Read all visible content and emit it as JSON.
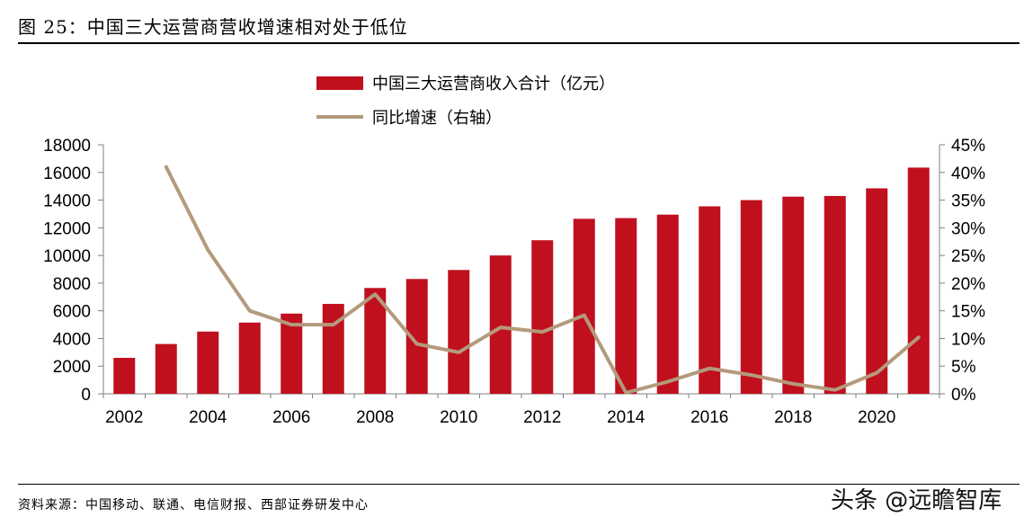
{
  "figure": {
    "title": "图 25：中国三大运营商营收增速相对处于低位",
    "source": "资料来源：中国移动、联通、电信财报、西部证券研发中心",
    "watermark": "头条 @远瞻智库"
  },
  "chart_data": {
    "type": "bar+line",
    "title": "",
    "categories": [
      2002,
      2003,
      2004,
      2005,
      2006,
      2007,
      2008,
      2009,
      2010,
      2011,
      2012,
      2013,
      2014,
      2015,
      2016,
      2017,
      2018,
      2019,
      2020,
      2021
    ],
    "x_tick_labels": [
      "2002",
      "2004",
      "2006",
      "2008",
      "2010",
      "2012",
      "2014",
      "2016",
      "2018",
      "2020"
    ],
    "series": [
      {
        "name": "中国三大运营商收入合计（亿元）",
        "type": "bar",
        "axis": "left",
        "color": "#c0101e",
        "values": [
          2600,
          3600,
          4500,
          5150,
          5800,
          6500,
          7650,
          8300,
          8950,
          10000,
          11100,
          12650,
          12700,
          12950,
          13550,
          14000,
          14250,
          14300,
          14850,
          16350
        ]
      },
      {
        "name": "同比增速（右轴）",
        "type": "line",
        "axis": "right",
        "color": "#b49a7c",
        "values": [
          null,
          0.41,
          0.26,
          0.15,
          0.125,
          0.125,
          0.18,
          0.09,
          0.075,
          0.12,
          0.112,
          0.142,
          0.002,
          0.022,
          0.046,
          0.034,
          0.018,
          0.007,
          0.038,
          0.102
        ]
      }
    ],
    "y_left": {
      "min": 0,
      "max": 18000,
      "ticks": [
        "0",
        "2000",
        "4000",
        "6000",
        "8000",
        "10000",
        "12000",
        "14000",
        "16000",
        "18000"
      ]
    },
    "y_right": {
      "min": 0,
      "max": 0.45,
      "ticks": [
        "0%",
        "5%",
        "10%",
        "15%",
        "20%",
        "25%",
        "30%",
        "35%",
        "40%",
        "45%"
      ]
    },
    "grid": false,
    "legend_position": "top-center"
  }
}
